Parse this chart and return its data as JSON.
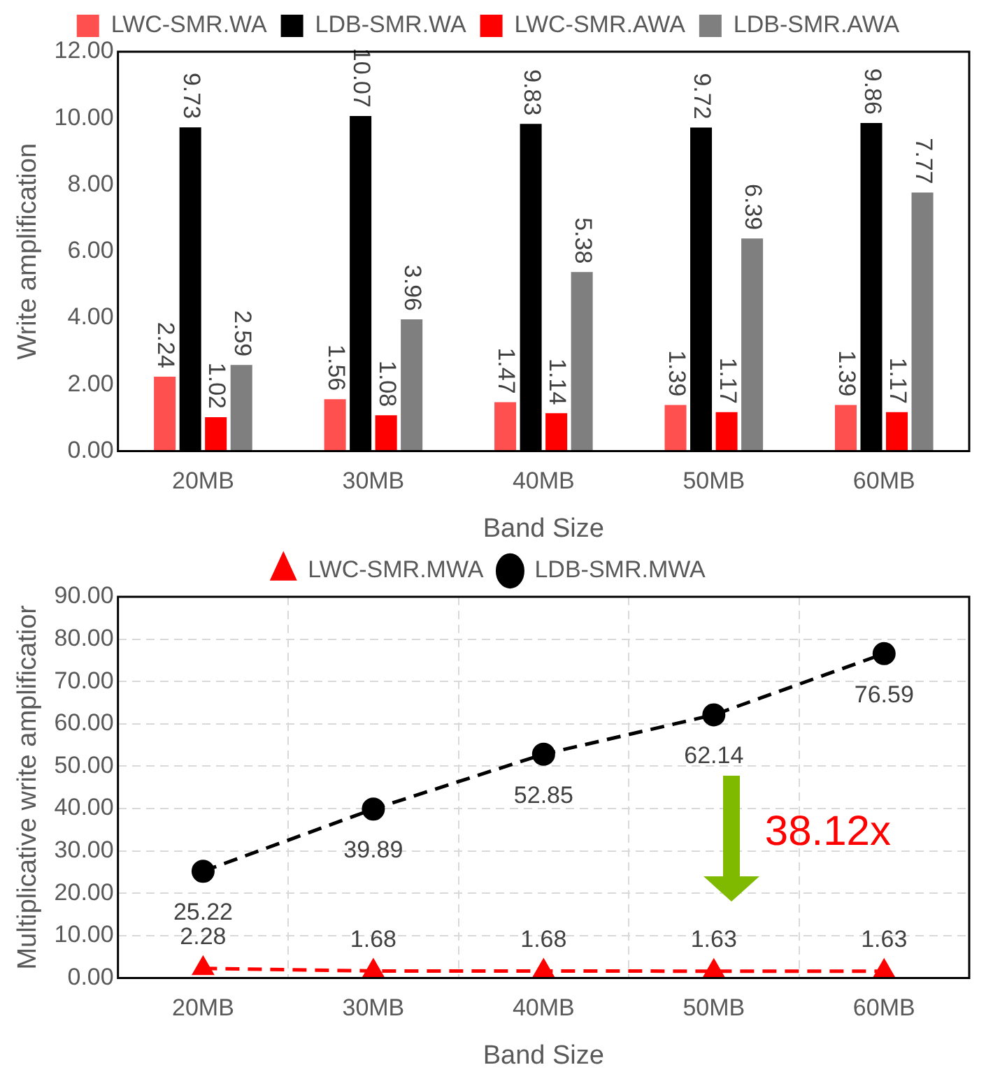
{
  "chart_data": [
    {
      "type": "bar",
      "xlabel": "Band Size",
      "ylabel": "Write amplification",
      "categories": [
        "20MB",
        "30MB",
        "40MB",
        "50MB",
        "60MB"
      ],
      "series": [
        {
          "name": "LWC-SMR.WA",
          "color": "#ff5050",
          "values": [
            2.24,
            1.56,
            1.47,
            1.39,
            1.39
          ]
        },
        {
          "name": "LDB-SMR.WA",
          "color": "#000000",
          "values": [
            9.73,
            10.07,
            9.83,
            9.72,
            9.86
          ]
        },
        {
          "name": "LWC-SMR.AWA",
          "color": "#ff0000",
          "values": [
            1.02,
            1.08,
            1.14,
            1.17,
            1.17
          ]
        },
        {
          "name": "LDB-SMR.AWA",
          "color": "#7f7f7f",
          "values": [
            2.59,
            3.96,
            5.38,
            6.39,
            7.77
          ]
        }
      ],
      "ylim": [
        0,
        12
      ],
      "yticks": [
        {
          "value": 0,
          "label": "0.00"
        },
        {
          "value": 2,
          "label": "2.00"
        },
        {
          "value": 4,
          "label": "4.00"
        },
        {
          "value": 6,
          "label": "6.00"
        },
        {
          "value": 8,
          "label": "8.00"
        },
        {
          "value": 10,
          "label": "10.00"
        },
        {
          "value": 12,
          "label": "12.00"
        }
      ],
      "grid": false,
      "legend": "top",
      "data_labels": true
    },
    {
      "type": "line",
      "xlabel": "Band Size",
      "ylabel": "Multiplicative write amplificatior",
      "categories": [
        "20MB",
        "30MB",
        "40MB",
        "50MB",
        "60MB"
      ],
      "series": [
        {
          "name": "LWC-SMR.MWA",
          "color": "#ff0000",
          "values": [
            2.28,
            1.68,
            1.68,
            1.63,
            1.63
          ],
          "marker": "triangle",
          "line_style": "dashed"
        },
        {
          "name": "LDB-SMR.MWA",
          "color": "#000000",
          "values": [
            25.22,
            39.89,
            52.85,
            62.14,
            76.59
          ],
          "marker": "circle",
          "line_style": "dashed"
        }
      ],
      "ylim": [
        0,
        90
      ],
      "yticks": [
        {
          "value": 0,
          "label": "0.00"
        },
        {
          "value": 10,
          "label": "10.00"
        },
        {
          "value": 20,
          "label": "20.00"
        },
        {
          "value": 30,
          "label": "30.00"
        },
        {
          "value": 40,
          "label": "40.00"
        },
        {
          "value": 50,
          "label": "50.00"
        },
        {
          "value": 60,
          "label": "60.00"
        },
        {
          "value": 70,
          "label": "70.00"
        },
        {
          "value": 80,
          "label": "80.00"
        },
        {
          "value": 90,
          "label": "90.00"
        }
      ],
      "grid": true,
      "legend": "top",
      "data_labels": true,
      "annotations": [
        "38.12x"
      ]
    }
  ]
}
